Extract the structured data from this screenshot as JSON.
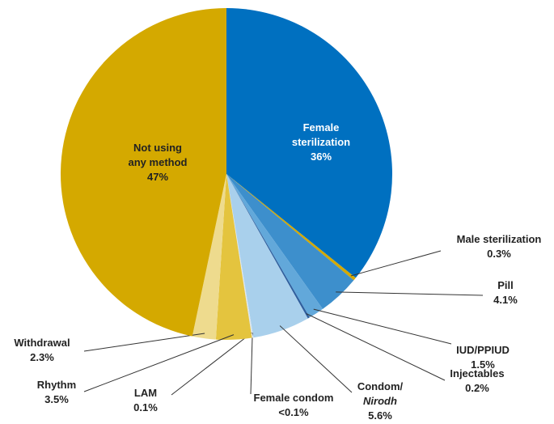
{
  "chart_data": {
    "type": "pie",
    "categories": [
      [
        "Female",
        "sterilization"
      ],
      [
        "Male sterilization"
      ],
      [
        "Pill"
      ],
      [
        "IUD/PPIUD"
      ],
      [
        "Injectables"
      ],
      [
        "Condom/",
        "Nirodh"
      ],
      [
        "Female condom"
      ],
      [
        "LAM"
      ],
      [
        "Rhythm"
      ],
      [
        "Withdrawal"
      ],
      [
        "Not using",
        "any method"
      ]
    ],
    "values": [
      36,
      0.3,
      4.1,
      1.5,
      0.2,
      5.6,
      0.05,
      0.1,
      3.5,
      2.3,
      47
    ],
    "value_labels": [
      "36%",
      "0.3%",
      "4.1%",
      "1.5%",
      "0.2%",
      "5.6%",
      "<0.1%",
      "0.1%",
      "3.5%",
      "2.3%",
      "47%"
    ],
    "colors": [
      "#0070c0",
      "#d4a900",
      "#3d8fcc",
      "#62a8da",
      "#2f5f9e",
      "#a9d0ec",
      "#c9ddec",
      "#dfe6ec",
      "#e4c43e",
      "#eedb8e",
      "#d4a900"
    ]
  }
}
